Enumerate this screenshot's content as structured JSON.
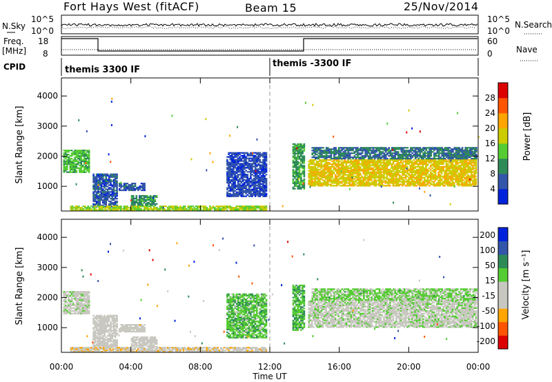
{
  "header": {
    "station": "Fort Hays West (fitACF)",
    "beam": "Beam 15",
    "date": "25/Nov/2014"
  },
  "top_panels": {
    "nsky_label": "N.Sky",
    "nsearch_label": "N.Search",
    "noise_ticks_left": [
      "10^5",
      "10^0"
    ],
    "noise_ticks_right": [
      "10^5",
      "10^0"
    ],
    "freq_label_line1": "Freq.",
    "freq_label_line2": "[MHz]",
    "freq_ticks": [
      "18",
      "8"
    ],
    "nave_label": "Nave",
    "nave_ticks": [
      "60",
      "0"
    ],
    "cpid_label": "CPID",
    "cpid_modes": [
      "themis 3300 IF",
      "themis -3300 IF"
    ]
  },
  "chart_data": [
    {
      "type": "heatmap",
      "name": "power",
      "ylabel": "Slant Range [km]",
      "xlabel": "Time UT",
      "x_ticks": [
        "00:00",
        "04:00",
        "08:00",
        "12:00",
        "16:00",
        "20:00",
        "00:00"
      ],
      "y_ticks": [
        "1000",
        "2000",
        "3000",
        "4000"
      ],
      "xlim_hours": [
        0,
        24
      ],
      "ylim_km": [
        180,
        4600
      ],
      "colorbar_label": "Power [dB]",
      "colorbar_ticks": [
        "28",
        "24",
        "20",
        "16",
        "12",
        "8",
        "4"
      ],
      "colorbar_range": [
        0,
        32
      ],
      "colors": [
        "#0022dd",
        "#3355aa",
        "#2e8b57",
        "#55cc33",
        "#cccc00",
        "#ffa500",
        "#ff5500",
        "#dd0000"
      ],
      "regions": [
        {
          "t0": 0.1,
          "t1": 1.6,
          "r0": 1450,
          "r1": 2200,
          "v": 13
        },
        {
          "t0": 1.8,
          "t1": 3.2,
          "r0": 300,
          "r1": 1400,
          "v": 6
        },
        {
          "t0": 3.3,
          "t1": 4.8,
          "r0": 850,
          "r1": 1100,
          "v": 6
        },
        {
          "t0": 4.0,
          "t1": 5.5,
          "r0": 350,
          "r1": 700,
          "v": 10
        },
        {
          "t0": 0.5,
          "t1": 11.8,
          "r0": 180,
          "r1": 360,
          "v": 16
        },
        {
          "t0": 9.5,
          "t1": 11.8,
          "r0": 650,
          "r1": 2100,
          "v": 5
        },
        {
          "t0": 13.3,
          "t1": 14.0,
          "r0": 900,
          "r1": 2400,
          "v": 11
        },
        {
          "t0": 14.2,
          "t1": 23.9,
          "r0": 1000,
          "r1": 1900,
          "v": 19
        },
        {
          "t0": 14.4,
          "t1": 23.9,
          "r0": 1900,
          "r1": 2300,
          "v": 8
        }
      ]
    },
    {
      "type": "heatmap",
      "name": "velocity",
      "ylabel": "Slant Range [km]",
      "xlabel": "Time UT",
      "x_ticks": [
        "00:00",
        "04:00",
        "08:00",
        "12:00",
        "16:00",
        "20:00",
        "00:00"
      ],
      "y_ticks": [
        "1000",
        "2000",
        "3000",
        "4000"
      ],
      "xlim_hours": [
        0,
        24
      ],
      "ylim_km": [
        180,
        4600
      ],
      "colorbar_label": "Velocity [m s⁻¹]",
      "colorbar_ticks": [
        "200",
        "100",
        "50",
        "15",
        "-15",
        "-50",
        "-100",
        "-200"
      ],
      "colorbar_range": [
        -250,
        250
      ],
      "colors": [
        "#dd0000",
        "#ff5500",
        "#ffa500",
        "#c8c8c0",
        "#c8c8c0",
        "#55cc33",
        "#2e8b57",
        "#3355aa",
        "#0022dd"
      ],
      "regions": [
        {
          "t0": 0.1,
          "t1": 1.6,
          "r0": 1450,
          "r1": 2200,
          "v": 0
        },
        {
          "t0": 1.8,
          "t1": 3.2,
          "r0": 300,
          "r1": 1400,
          "v": -30
        },
        {
          "t0": 3.3,
          "t1": 4.8,
          "r0": 850,
          "r1": 1100,
          "v": -40
        },
        {
          "t0": 4.0,
          "t1": 5.5,
          "r0": 350,
          "r1": 700,
          "v": -20
        },
        {
          "t0": 0.5,
          "t1": 11.8,
          "r0": 180,
          "r1": 360,
          "v": -60
        },
        {
          "t0": 9.5,
          "t1": 11.8,
          "r0": 650,
          "r1": 2100,
          "v": 60
        },
        {
          "t0": 13.3,
          "t1": 14.0,
          "r0": 900,
          "r1": 2400,
          "v": 70
        },
        {
          "t0": 14.2,
          "t1": 23.9,
          "r0": 1000,
          "r1": 1900,
          "v": 0
        },
        {
          "t0": 14.4,
          "t1": 23.9,
          "r0": 1900,
          "r1": 2300,
          "v": 40
        }
      ]
    }
  ]
}
